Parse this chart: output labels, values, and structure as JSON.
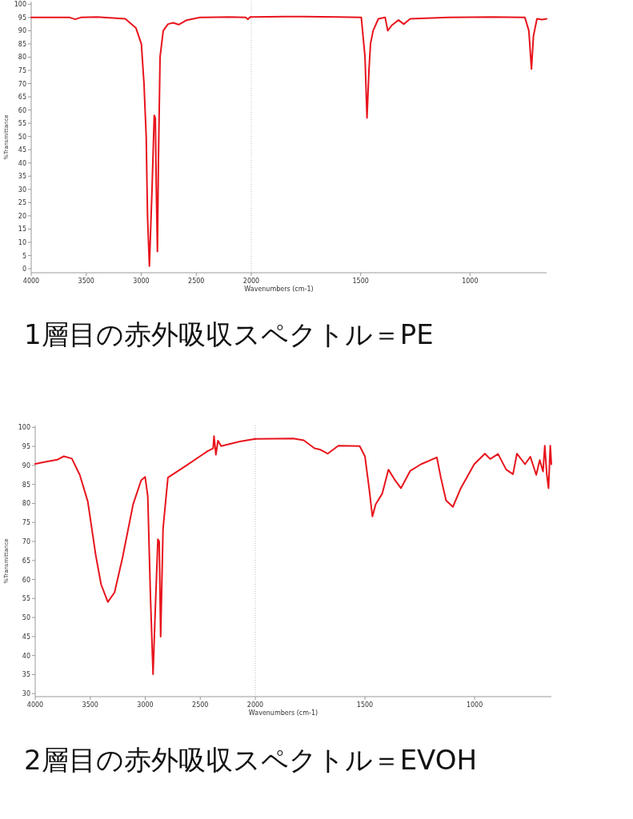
{
  "chart_data": [
    {
      "type": "line",
      "title": "1層目の赤外吸収スペクトル＝PE",
      "ylabel": "%Transmittance",
      "xlim": [
        4000,
        2000
      ],
      "xticks": [
        4000,
        3500,
        3000,
        2500,
        2000
      ],
      "ylim": [
        -1.5,
        101
      ],
      "yticks": [
        0,
        5,
        10,
        15,
        20,
        25,
        30,
        35,
        40,
        45,
        50,
        55,
        60,
        65,
        70,
        75,
        80,
        85,
        90,
        95,
        100
      ],
      "ref_lines": [
        {
          "axis": "x",
          "value": 2000,
          "color": "#bbbbbb",
          "line_style": "dotted"
        }
      ],
      "series": [
        {
          "color": "#e8141c",
          "x": [
            4000,
            3800,
            3650,
            3600,
            3550,
            3400,
            3145,
            3048,
            2999,
            2975,
            2955,
            2943,
            2926,
            2902,
            2882,
            2872,
            2863,
            2853,
            2844,
            2829,
            2800,
            2757,
            2709,
            2660,
            2587,
            2466,
            2200,
            2050,
            2030,
            2010,
            2000
          ],
          "values": [
            95,
            95,
            95,
            94.3,
            95,
            95.2,
            94.5,
            91,
            85,
            70,
            50,
            20,
            1,
            30,
            58,
            57,
            30,
            6.5,
            40,
            80,
            90,
            92.5,
            93,
            92.3,
            94,
            95,
            95.2,
            95,
            94.3,
            95.2,
            95.2
          ]
        }
      ]
    },
    {
      "type": "line",
      "xlabel": "Wavenumbers (cm-1)",
      "tick_labels": "x",
      "xlim": [
        2000,
        650
      ],
      "xticks": [
        1500,
        1000
      ],
      "ylim": [
        -1.5,
        101
      ],
      "series": [
        {
          "color": "#e8141c",
          "x": [
            2000,
            1850,
            1759,
            1600,
            1497,
            1480,
            1471,
            1462,
            1455,
            1443,
            1419,
            1388,
            1376,
            1358,
            1327,
            1303,
            1273,
            1100,
            900,
            749,
            731,
            719,
            710,
            694,
            670,
            650
          ],
          "values": [
            95.2,
            95.3,
            95.3,
            95.2,
            95,
            80,
            57,
            75,
            85,
            90,
            94.5,
            95,
            90,
            92,
            94,
            92.5,
            94.5,
            95,
            95.2,
            95,
            90,
            75.5,
            88,
            94.5,
            94.2,
            94.5
          ]
        }
      ]
    },
    {
      "type": "line",
      "title": "2層目の赤外吸収スペクトル＝EVOH",
      "ylabel": "%Transmittance",
      "xlim": [
        4000,
        2000
      ],
      "xticks": [
        4000,
        3500,
        3000,
        2500,
        2000
      ],
      "ylim": [
        29.2,
        100.5
      ],
      "yticks": [
        30,
        35,
        40,
        45,
        50,
        55,
        60,
        65,
        70,
        75,
        80,
        85,
        90,
        95,
        100
      ],
      "ref_lines": [
        {
          "axis": "x",
          "value": 2000,
          "color": "#bbbbbb",
          "line_style": "dotted"
        }
      ],
      "series": [
        {
          "color": "#e8141c",
          "x": [
            4000,
            3900,
            3800,
            3740,
            3667,
            3595,
            3522,
            3450,
            3401,
            3340,
            3279,
            3207,
            3110,
            3037,
            3001,
            2977,
            2953,
            2929,
            2904,
            2885,
            2873,
            2860,
            2838,
            2794,
            2625,
            2431,
            2383,
            2375,
            2358,
            2339,
            2310,
            2140,
            2000
          ],
          "values": [
            90.4,
            91,
            91.5,
            92.4,
            91.8,
            87.5,
            80.5,
            66.4,
            58.7,
            54.1,
            56.6,
            65.7,
            79.8,
            86.1,
            87,
            81.9,
            55.9,
            35.1,
            55.9,
            70.6,
            70,
            45,
            73.4,
            86.8,
            90,
            93.8,
            94.5,
            97.7,
            92.8,
            96.5,
            95.1,
            96.3,
            97
          ]
        }
      ]
    },
    {
      "type": "line",
      "xlabel": "Wavenumbers (cm-1)",
      "tick_labels": "x",
      "xlim": [
        2000,
        650
      ],
      "xticks": [
        1500,
        1000
      ],
      "ylim": [
        29.2,
        100.5
      ],
      "series": [
        {
          "color": "#e8141c",
          "x": [
            2000,
            1827,
            1779,
            1730,
            1706,
            1670,
            1621,
            1524,
            1500,
            1481,
            1466,
            1451,
            1421,
            1393,
            1366,
            1336,
            1293,
            1245,
            1172,
            1154,
            1130,
            1099,
            1063,
            1002,
            953,
            929,
            893,
            856,
            825,
            807,
            770,
            746,
            719,
            703,
            688,
            680,
            671,
            663,
            655,
            650
          ],
          "values": [
            97,
            97.1,
            96.6,
            94.5,
            94.2,
            93.1,
            95.2,
            95.1,
            92.4,
            84,
            76.6,
            79.8,
            82.6,
            88.9,
            86.4,
            84,
            88.6,
            90.3,
            92.1,
            86.8,
            80.8,
            79.1,
            84,
            90.3,
            93.1,
            91.7,
            93,
            88.9,
            87.7,
            93.1,
            90.3,
            92.3,
            87.5,
            91.4,
            88.4,
            95.2,
            87.7,
            84,
            95.2,
            90.3
          ]
        }
      ]
    }
  ]
}
